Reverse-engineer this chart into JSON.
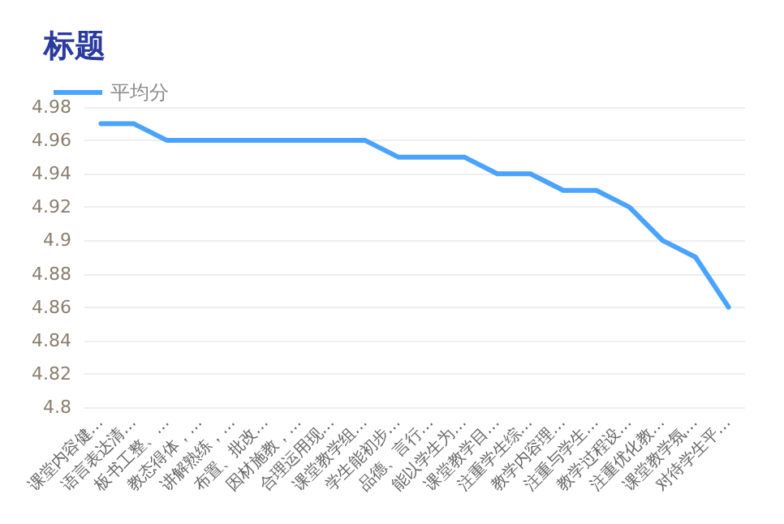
{
  "chart_data": {
    "type": "line",
    "title": "标题",
    "categories": [
      "课堂内容健…",
      "语言表达清…",
      "板书工整、…",
      "教态得体，…",
      "讲解熟练，…",
      "布置、批改…",
      "因材施教，…",
      "合理运用现…",
      "课堂教学组…",
      "学生能初步…",
      "品德、言行…",
      "能以学生为…",
      "课堂教学目…",
      "注重学生综…",
      "教学内容理…",
      "注重与学生…",
      "教学过程设…",
      "注重优化教…",
      "课堂教学氛…",
      "对待学生平…"
    ],
    "series": [
      {
        "name": "平均分",
        "color": "#4aa3ff",
        "values": [
          4.97,
          4.97,
          4.96,
          4.96,
          4.96,
          4.96,
          4.96,
          4.96,
          4.96,
          4.95,
          4.95,
          4.95,
          4.94,
          4.94,
          4.93,
          4.93,
          4.92,
          4.9,
          4.89,
          4.86
        ]
      }
    ],
    "ylim": [
      4.8,
      4.98
    ],
    "yticks": [
      4.8,
      4.82,
      4.84,
      4.86,
      4.88,
      4.9,
      4.92,
      4.94,
      4.96,
      4.98
    ],
    "grid": "y",
    "legend": "top left",
    "marker": "none",
    "line_style": "solid"
  }
}
